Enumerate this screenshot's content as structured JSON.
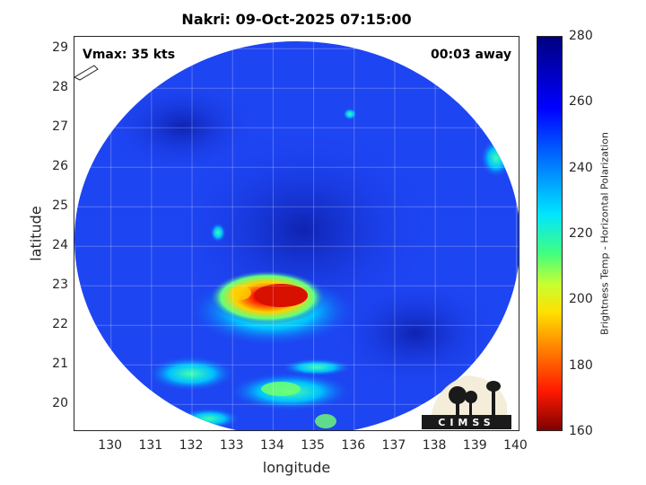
{
  "title": "Nakri: 09-Oct-2025 07:15:00",
  "vmax_label": "Vmax: 35 kts",
  "away_label": "00:03 away",
  "logo_text": "CIMSS",
  "map": {
    "xlabel": "longitude",
    "ylabel": "latitude",
    "xlim": [
      129.1,
      140.1
    ],
    "ylim": [
      19.3,
      29.3
    ],
    "xticks": [
      130,
      131,
      132,
      133,
      134,
      135,
      136,
      137,
      138,
      139,
      140
    ],
    "yticks": [
      20,
      21,
      22,
      23,
      24,
      25,
      26,
      27,
      28,
      29
    ]
  },
  "colorbar": {
    "label": "Brightness Temp - Horizontal Polarization",
    "range": [
      160,
      280
    ],
    "ticks": [
      280,
      260,
      240,
      220,
      200,
      180,
      160
    ]
  },
  "colors": {
    "background_field": "#1a3ff0",
    "storm_core": "#ff2000",
    "storm_ring": "#ffe000"
  }
}
